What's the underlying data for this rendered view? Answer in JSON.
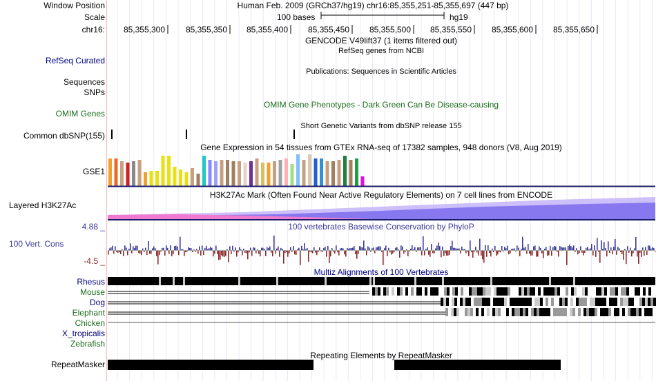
{
  "header": {
    "window_position_label": "Window Position",
    "window_position_value": "Human Feb. 2009 (GRCh37/hg19)   chr16:85,355,251-85,355,697 (447 bp)",
    "scale_label": "Scale",
    "scale_value": "100 bases",
    "assembly": "hg19",
    "chrom_label": "chr16:",
    "ruler_ticks": [
      "85,355,300",
      "85,355,350",
      "85,355,400",
      "85,355,450",
      "85,355,500",
      "85,355,550",
      "85,355,600",
      "85,355,650"
    ]
  },
  "tracks": {
    "gencode_title": "GENCODE V49lift37 (1 items filtered out)",
    "refseq_title": "RefSeq genes from NCBI",
    "refseq_label": "RefSeq Curated",
    "publications_title": "Publications: Sequences in Scientific Articles",
    "sequences_label": "Sequences",
    "snps_label": "SNPs",
    "omim_label": "OMIM Genes",
    "omim_title": "OMIM Gene Phenotypes - Dark Green Can Be Disease-causing",
    "dbsnp_title": "Short Genetic Variants from dbSNP release 155",
    "dbsnp_label": "Common dbSNP(155)",
    "gtex_title": "Gene Expression in 54 tissues from GTEx RNA-seq of 17382 samples, 948 donors (V8, Aug 2019)",
    "gtex_label": "GSE1",
    "h3k27ac_title": "H3K27Ac Mark (Often Found Near Active Regulatory Elements) on 7 cell lines from ENCODE",
    "h3k27ac_label": "Layered H3K27Ac",
    "phylop_title": "100 vertebrates Basewise Conservation by PhyloP",
    "phylop_label": "100 Vert. Cons",
    "phylop_max": "4.88 _",
    "phylop_min": "-4.5 _",
    "multiz_title": "Multiz Alignments of 100 Vertebrates",
    "species": [
      "Rhesus",
      "Mouse",
      "Dog",
      "Elephant",
      "Chicken",
      "X_tropicalis",
      "Zebrafish"
    ],
    "repeat_title": "Repeating Elements by RepeatMasker",
    "repeat_label": "RepeatMasker"
  },
  "colors": {
    "blue_label": "#000080",
    "green_label": "#1a6b1a",
    "phylop_pos": "#3a3a9a",
    "phylop_neg": "#8b2a2a",
    "h3k27ac_pink": "#f07ad0",
    "h3k27ac_purple": "#8878f0",
    "gtex_bars": [
      "#f0a030",
      "#e86a2a",
      "#c8a080",
      "#d02020",
      "#888888",
      "#c8a080",
      "#e8e010",
      "#e8e010",
      "#e8e010",
      "#e8e010",
      "#20c8c8",
      "#8888ff",
      "#a0a0ff",
      "#c8a080",
      "#a08060",
      "#703090"
    ]
  }
}
